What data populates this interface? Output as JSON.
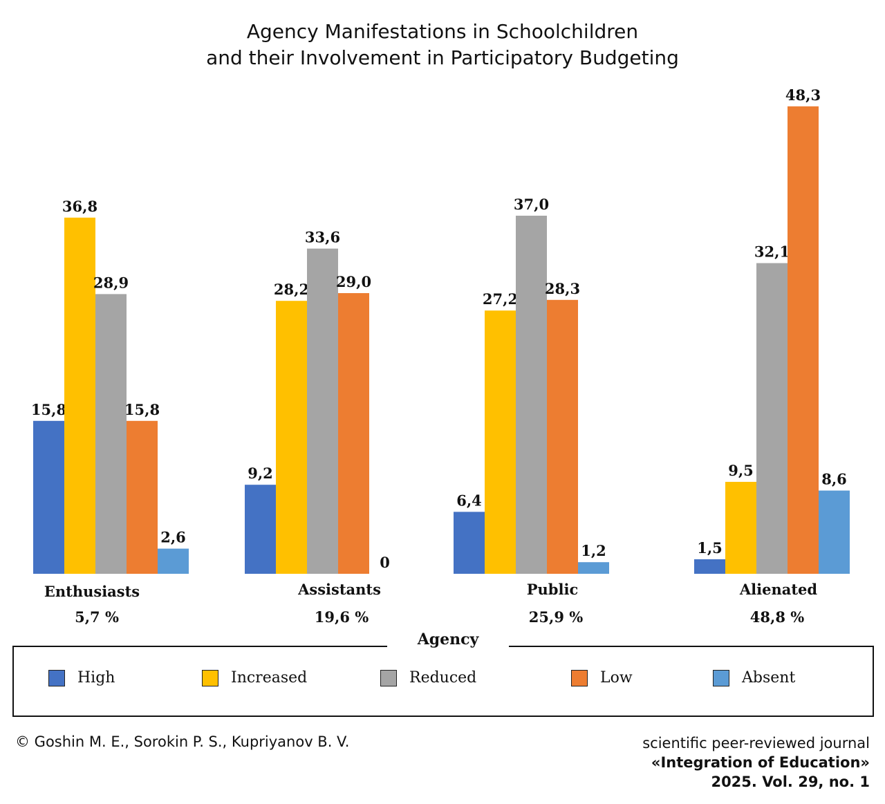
{
  "chart_data": {
    "type": "bar",
    "title_line1": "Agency Manifestations in Schoolchildren",
    "title_line2": "and their Involvement in Participatory Budgeting",
    "categories": [
      "Enthusiasts",
      "Assistants",
      "Public",
      "Alienated"
    ],
    "category_shares": [
      "5,7 %",
      "19,6 %",
      "25,9 %",
      "48,8 %"
    ],
    "legend_title": "Agency",
    "legend_placement": "bottom",
    "series": [
      {
        "name": "High",
        "color": "#4472C4",
        "values": [
          15.8,
          9.2,
          6.4,
          1.5
        ],
        "labels": [
          "15,8",
          "9,2",
          "6,4",
          "1,5"
        ]
      },
      {
        "name": "Increased",
        "color": "#FFC000",
        "values": [
          36.8,
          28.2,
          27.2,
          9.5
        ],
        "labels": [
          "36,8",
          "28,2",
          "27,2",
          "9,5"
        ]
      },
      {
        "name": "Reduced",
        "color": "#A5A5A5",
        "values": [
          28.9,
          33.6,
          37.0,
          32.1
        ],
        "labels": [
          "28,9",
          "33,6",
          "37,0",
          "32,1"
        ]
      },
      {
        "name": "Low",
        "color": "#ED7D31",
        "values": [
          15.8,
          29.0,
          28.3,
          48.3
        ],
        "labels": [
          "15,8",
          "29,0",
          "28,3",
          "48,3"
        ]
      },
      {
        "name": "Absent",
        "color": "#5B9BD5",
        "values": [
          2.6,
          0,
          1.2,
          8.6
        ],
        "labels": [
          "2,6",
          "0",
          "1,2",
          "8,6"
        ]
      }
    ],
    "grid": false
  },
  "footer": {
    "copyright": "© Goshin M. E., Sorokin P. S., Kupriyanov B. V.",
    "journal_line1": "scientific peer-reviewed journal",
    "journal_line2": "«Integration of Education»",
    "journal_line3": "2025. Vol. 29, no. 1"
  }
}
